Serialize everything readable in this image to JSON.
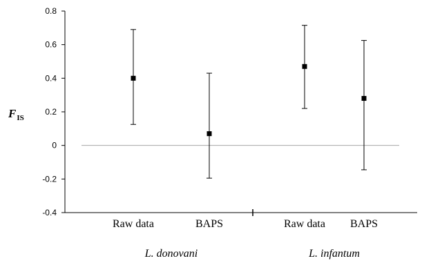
{
  "chart_data": {
    "type": "scatter",
    "title": "",
    "ylabel": "F",
    "ylabel_subscript": "IS",
    "xlabel": "",
    "ylim": [
      -0.4,
      0.8
    ],
    "yticks": [
      -0.4,
      -0.2,
      0,
      0.2,
      0.4,
      0.6,
      0.8
    ],
    "ytick_labels": [
      "-0.4",
      "-0.2",
      "0",
      "0.2",
      "0.4",
      "0.6",
      "0.8"
    ],
    "reference_line": 0,
    "grid": false,
    "categories": [
      "Raw data",
      "BAPS",
      "Raw data",
      "BAPS"
    ],
    "groups": [
      {
        "label": "L. donovani",
        "categories": [
          0,
          1
        ]
      },
      {
        "label": "L. infantum",
        "categories": [
          2,
          3
        ]
      }
    ],
    "points": [
      {
        "value": 0.4,
        "lower": 0.125,
        "upper": 0.69
      },
      {
        "value": 0.07,
        "lower": -0.195,
        "upper": 0.43
      },
      {
        "value": 0.47,
        "lower": 0.22,
        "upper": 0.715
      },
      {
        "value": 0.28,
        "lower": -0.145,
        "upper": 0.625
      }
    ]
  }
}
